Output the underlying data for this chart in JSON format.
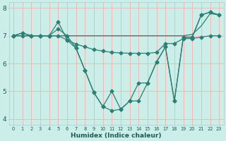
{
  "xlabel": "Humidex (Indice chaleur)",
  "x": [
    0,
    1,
    2,
    3,
    4,
    5,
    6,
    7,
    8,
    9,
    10,
    11,
    12,
    13,
    14,
    15,
    16,
    17,
    18,
    19,
    20,
    21,
    22,
    23
  ],
  "line1": [
    7.0,
    7.1,
    7.0,
    7.0,
    7.0,
    7.5,
    6.85,
    6.55,
    5.75,
    4.95,
    4.45,
    4.3,
    4.35,
    4.65,
    4.65,
    5.3,
    6.05,
    6.6,
    4.65,
    6.95,
    6.95,
    7.75,
    7.85,
    7.75
  ],
  "line2": [
    7.0,
    7.1,
    7.0,
    7.0,
    7.0,
    7.25,
    7.0,
    6.55,
    5.75,
    4.95,
    4.45,
    5.0,
    4.35,
    4.65,
    5.3,
    5.3,
    6.05,
    6.6,
    4.65,
    6.95,
    6.95,
    7.75,
    7.85,
    7.75
  ],
  "line3": [
    7.0,
    7.0,
    7.0,
    7.0,
    7.0,
    7.0,
    6.85,
    6.7,
    6.6,
    6.5,
    6.45,
    6.4,
    6.38,
    6.37,
    6.37,
    6.37,
    6.4,
    6.72,
    6.72,
    6.9,
    6.9,
    6.95,
    7.0,
    7.0
  ],
  "line4": [
    7.0,
    7.0,
    7.0,
    7.0,
    7.0,
    7.0,
    7.0,
    7.0,
    7.0,
    7.0,
    7.0,
    7.0,
    7.0,
    7.0,
    7.0,
    7.0,
    7.0,
    7.0,
    7.0,
    7.0,
    7.05,
    7.35,
    7.8,
    7.75
  ],
  "ylim": [
    3.8,
    8.2
  ],
  "yticks": [
    4,
    5,
    6,
    7,
    8
  ],
  "xticks": [
    0,
    1,
    2,
    3,
    4,
    5,
    6,
    7,
    8,
    9,
    10,
    11,
    12,
    13,
    14,
    15,
    16,
    17,
    18,
    19,
    20,
    21,
    22,
    23
  ],
  "line_color": "#2d7f75",
  "bg_color": "#cceee8",
  "grid_color": "#f0b8b8",
  "marker": "D",
  "marker_size": 2.5,
  "line_width": 0.9
}
